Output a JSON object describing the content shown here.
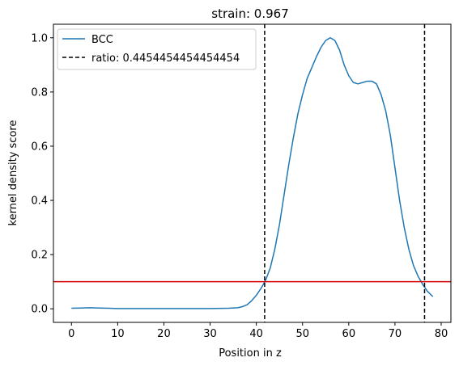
{
  "chart_data": {
    "type": "line",
    "title": "strain: 0.967",
    "xlabel": "Position in z",
    "ylabel": "kernel density score",
    "xlim": [
      -3.9,
      82.1
    ],
    "ylim": [
      -0.05,
      1.05
    ],
    "xticks": [
      0,
      10,
      20,
      30,
      40,
      50,
      60,
      70,
      80
    ],
    "yticks": [
      0.0,
      0.2,
      0.4,
      0.6,
      0.8,
      1.0
    ],
    "xtick_labels": [
      "0",
      "10",
      "20",
      "30",
      "40",
      "50",
      "60",
      "70",
      "80"
    ],
    "ytick_labels": [
      "0.0",
      "0.2",
      "0.4",
      "0.6",
      "0.8",
      "1.0"
    ],
    "grid": false,
    "legend_position": "top-left",
    "series": [
      {
        "name": "BCC",
        "color": "#1f77b4",
        "style": "solid",
        "x": [
          0,
          2,
          4,
          6,
          8,
          10,
          15,
          20,
          25,
          30,
          34,
          36,
          37,
          38,
          39,
          40,
          41,
          42,
          43,
          44,
          45,
          46,
          47,
          48,
          49,
          50,
          51,
          52,
          53,
          54,
          55,
          56,
          57,
          58,
          59,
          60,
          61,
          62,
          63,
          64,
          65,
          66,
          67,
          68,
          69,
          70,
          71,
          72,
          73,
          74,
          75,
          76,
          77,
          78.2
        ],
        "y": [
          0.002,
          0.003,
          0.004,
          0.003,
          0.002,
          0.001,
          0.001,
          0.001,
          0.001,
          0.001,
          0.002,
          0.004,
          0.008,
          0.015,
          0.03,
          0.05,
          0.075,
          0.105,
          0.15,
          0.22,
          0.31,
          0.42,
          0.53,
          0.63,
          0.72,
          0.79,
          0.85,
          0.89,
          0.93,
          0.965,
          0.99,
          1.0,
          0.99,
          0.955,
          0.9,
          0.86,
          0.835,
          0.83,
          0.835,
          0.84,
          0.84,
          0.83,
          0.79,
          0.73,
          0.64,
          0.52,
          0.4,
          0.3,
          0.22,
          0.16,
          0.12,
          0.09,
          0.065,
          0.045
        ]
      },
      {
        "name": "ratio: 0.4454454454454454",
        "color": "#000000",
        "style": "dashed",
        "vlines": [
          41.8,
          76.4
        ]
      }
    ],
    "hlines": [
      {
        "y": 0.1,
        "color": "#d40000"
      }
    ]
  }
}
